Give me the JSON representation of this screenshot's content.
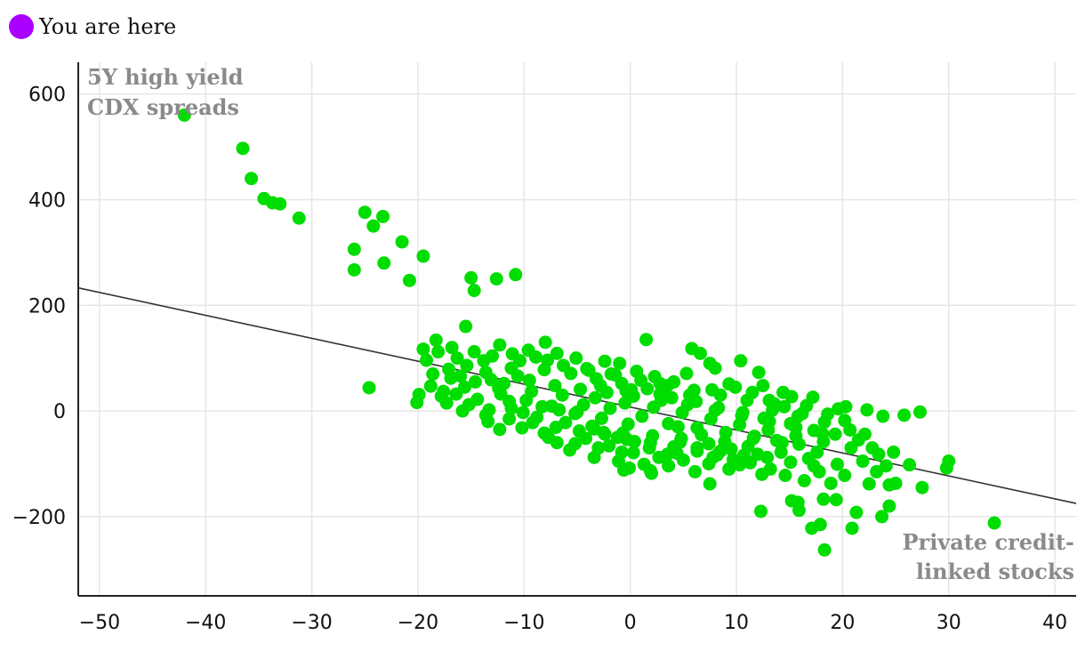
{
  "legend": {
    "label": "You are here",
    "color": "#aa00ff"
  },
  "colors": {
    "points": "#00dd00",
    "trend": "#333333",
    "grid": "#e6e6e6",
    "axis": "#222222",
    "label": "#8a8a8a"
  },
  "chart_data": {
    "type": "scatter",
    "annotations": {
      "y_corner": [
        "5Y high yield",
        "CDX spreads"
      ],
      "x_corner": [
        "Private credit-",
        "linked stocks"
      ]
    },
    "xlim": [
      -52,
      42
    ],
    "ylim": [
      -350,
      660
    ],
    "x_ticks": [
      -50,
      -40,
      -30,
      -20,
      -10,
      0,
      10,
      20,
      30,
      40
    ],
    "x_tick_labels": [
      "−50",
      "−40",
      "−30",
      "−20",
      "−10",
      "0",
      "10",
      "20",
      "30",
      "40"
    ],
    "y_ticks": [
      -200,
      0,
      200,
      400,
      600
    ],
    "y_tick_labels": [
      "−200",
      "0",
      "200",
      "400",
      "600"
    ],
    "grid": true,
    "trend_line": {
      "x": [
        -52,
        42
      ],
      "y": [
        233,
        -175
      ]
    },
    "highlight_point": {
      "x": -42,
      "y": 560
    },
    "points": [
      [
        -42,
        560
      ],
      [
        -36.5,
        497
      ],
      [
        -35.7,
        440
      ],
      [
        -34.5,
        402
      ],
      [
        -33.7,
        394
      ],
      [
        -33,
        392
      ],
      [
        -31.2,
        365
      ],
      [
        -25,
        376
      ],
      [
        -24.2,
        350
      ],
      [
        -23.3,
        368
      ],
      [
        -26,
        306
      ],
      [
        -26,
        267
      ],
      [
        -23.2,
        280
      ],
      [
        -21.5,
        320
      ],
      [
        -20.8,
        247
      ],
      [
        -19.5,
        293
      ],
      [
        -15,
        252
      ],
      [
        -14.7,
        228
      ],
      [
        -12.6,
        250
      ],
      [
        -10.8,
        258
      ],
      [
        -24.6,
        44
      ],
      [
        -15.5,
        160
      ],
      [
        -13,
        104
      ],
      [
        -12.3,
        125
      ],
      [
        -9.6,
        115
      ],
      [
        -8,
        130
      ],
      [
        1.5,
        135
      ],
      [
        5.8,
        118
      ],
      [
        6.6,
        109
      ],
      [
        7.5,
        90
      ],
      [
        8,
        81
      ],
      [
        10.4,
        95
      ],
      [
        12.1,
        73
      ],
      [
        11.5,
        35
      ],
      [
        13.6,
        13
      ],
      [
        17.2,
        26
      ],
      [
        -19.5,
        117
      ],
      [
        -18.3,
        134
      ],
      [
        -19.9,
        31
      ],
      [
        -20.1,
        16
      ],
      [
        -17.3,
        15
      ],
      [
        -13.4,
        -20
      ],
      [
        -12.3,
        -35
      ],
      [
        -10.2,
        -32
      ],
      [
        -8.1,
        -42
      ],
      [
        -6.9,
        -60
      ],
      [
        -0.6,
        -112
      ],
      [
        -0.1,
        -108
      ],
      [
        1.9,
        -113
      ],
      [
        2,
        -118
      ],
      [
        4.4,
        -80
      ],
      [
        6.1,
        -115
      ],
      [
        7.5,
        -138
      ],
      [
        9.3,
        -110
      ],
      [
        10.3,
        -102
      ],
      [
        12.4,
        -120
      ],
      [
        12.3,
        -190
      ],
      [
        15.2,
        -170
      ],
      [
        15.8,
        -173
      ],
      [
        15.9,
        -188
      ],
      [
        17.1,
        -222
      ],
      [
        17.9,
        -215
      ],
      [
        18.3,
        -263
      ],
      [
        18.2,
        -167
      ],
      [
        19.4,
        -168
      ],
      [
        20.2,
        -122
      ],
      [
        18.9,
        -137
      ],
      [
        20.9,
        -222
      ],
      [
        21.3,
        -192
      ],
      [
        22.5,
        -138
      ],
      [
        23.7,
        -200
      ],
      [
        24.4,
        -180
      ],
      [
        24.4,
        -140
      ],
      [
        25,
        -137
      ],
      [
        24.1,
        -104
      ],
      [
        19.6,
        4
      ],
      [
        20.3,
        8
      ],
      [
        22.3,
        2
      ],
      [
        23.8,
        -10
      ],
      [
        25.8,
        -8
      ],
      [
        27.3,
        -2
      ],
      [
        26.3,
        -102
      ],
      [
        27.5,
        -145
      ],
      [
        29.8,
        -108
      ],
      [
        30,
        -95
      ],
      [
        34.3,
        -212
      ],
      [
        21.5,
        -55
      ],
      [
        22.8,
        -70
      ],
      [
        23.4,
        -82
      ],
      [
        22.1,
        -44
      ],
      [
        24.8,
        -78
      ],
      [
        14.5,
        8
      ],
      [
        15.2,
        27
      ],
      [
        16.2,
        -5
      ],
      [
        13.1,
        20
      ],
      [
        9.3,
        51
      ],
      [
        5.3,
        71
      ],
      [
        2.8,
        52
      ],
      [
        -2.4,
        94
      ],
      [
        -1.8,
        70
      ],
      [
        -4.1,
        80
      ],
      [
        -6.9,
        109
      ],
      [
        -5.1,
        100
      ],
      [
        -7.8,
        96
      ],
      [
        -10.4,
        95
      ],
      [
        -11.2,
        81
      ],
      [
        -13.8,
        95
      ],
      [
        -15.4,
        86
      ],
      [
        -17.1,
        79
      ],
      [
        -16.3,
        100
      ],
      [
        -14.7,
        112
      ],
      [
        -18.6,
        70
      ],
      [
        -18.8,
        47
      ],
      [
        -17.8,
        28
      ],
      [
        -16.4,
        32
      ],
      [
        -15.2,
        12
      ],
      [
        -11.4,
        18
      ],
      [
        -8.3,
        8
      ],
      [
        -5.2,
        -5
      ],
      [
        -3.6,
        -29
      ],
      [
        -2.4,
        -44
      ],
      [
        -1.2,
        -50
      ],
      [
        0.4,
        -58
      ],
      [
        1.8,
        -70
      ],
      [
        3.5,
        -82
      ],
      [
        4.7,
        -59
      ],
      [
        6.3,
        -76
      ],
      [
        8.2,
        -83
      ],
      [
        9.5,
        -72
      ],
      [
        11.3,
        -98
      ],
      [
        13.2,
        -110
      ],
      [
        14.6,
        -122
      ],
      [
        16.4,
        -132
      ],
      [
        17.8,
        -115
      ],
      [
        19.5,
        -101
      ],
      [
        11.6,
        -52
      ],
      [
        13.8,
        -56
      ],
      [
        15.9,
        -63
      ],
      [
        17.6,
        -78
      ],
      [
        19.3,
        -44
      ],
      [
        17.3,
        -37
      ],
      [
        15.1,
        -24
      ],
      [
        12.6,
        -14
      ],
      [
        10.6,
        -3
      ],
      [
        8.3,
        6
      ],
      [
        6.2,
        18
      ],
      [
        3.9,
        25
      ],
      [
        1.6,
        42
      ],
      [
        -0.8,
        52
      ],
      [
        -3.2,
        61
      ],
      [
        -5.6,
        71
      ],
      [
        -8.1,
        78
      ],
      [
        -10.6,
        66
      ],
      [
        -13.1,
        59
      ],
      [
        -15.6,
        45
      ],
      [
        -12.4,
        43
      ],
      [
        -9.3,
        37
      ],
      [
        -6.4,
        30
      ],
      [
        -3.3,
        25
      ],
      [
        -0.5,
        15
      ],
      [
        2.2,
        7
      ],
      [
        4.9,
        -3
      ],
      [
        7.6,
        -15
      ],
      [
        10.3,
        -26
      ],
      [
        13,
        -36
      ],
      [
        15.6,
        -47
      ],
      [
        18.2,
        -58
      ],
      [
        20.8,
        -70
      ],
      [
        -8.8,
        -12
      ],
      [
        -6.1,
        -22
      ],
      [
        -3.4,
        -34
      ],
      [
        -0.7,
        -42
      ],
      [
        2.1,
        -47
      ],
      [
        4.8,
        -52
      ],
      [
        7.4,
        -62
      ],
      [
        -11.2,
        5
      ],
      [
        -14.4,
        22
      ],
      [
        -16.9,
        62
      ],
      [
        -13.6,
        73
      ],
      [
        -11.9,
        52
      ],
      [
        -9.5,
        58
      ],
      [
        -7.1,
        48
      ],
      [
        -4.7,
        41
      ],
      [
        -2.2,
        35
      ],
      [
        0.3,
        28
      ],
      [
        2.9,
        20
      ],
      [
        5.4,
        12
      ],
      [
        8,
        1
      ],
      [
        10.5,
        -9
      ],
      [
        13.1,
        -20
      ],
      [
        15.6,
        -31
      ],
      [
        18.1,
        -43
      ],
      [
        -1.9,
        5
      ],
      [
        1.1,
        -10
      ],
      [
        3.6,
        -24
      ],
      [
        6.3,
        -32
      ],
      [
        9,
        -41
      ],
      [
        11.7,
        -48
      ],
      [
        14.3,
        -60
      ],
      [
        16.8,
        -90
      ],
      [
        12,
        -82
      ],
      [
        9.7,
        -92
      ],
      [
        7.4,
        -100
      ],
      [
        5,
        -93
      ],
      [
        2.7,
        -88
      ],
      [
        0.3,
        -79
      ],
      [
        -2,
        -66
      ],
      [
        -4.2,
        -52
      ],
      [
        -5.7,
        -74
      ],
      [
        -3.4,
        -88
      ],
      [
        -1.1,
        -95
      ],
      [
        1.3,
        -101
      ],
      [
        3.6,
        -104
      ],
      [
        4.5,
        -30
      ],
      [
        6.7,
        -45
      ],
      [
        8.9,
        -58
      ],
      [
        11.1,
        -67
      ],
      [
        -0.2,
        -25
      ],
      [
        -2.7,
        -14
      ],
      [
        -5,
        -2
      ],
      [
        -7.4,
        9
      ],
      [
        -9.8,
        20
      ],
      [
        -12.2,
        32
      ],
      [
        -14.6,
        55
      ],
      [
        -16,
        66
      ],
      [
        -17.6,
        37
      ],
      [
        -15.8,
        0
      ],
      [
        -13.6,
        -8
      ],
      [
        -11.4,
        -15
      ],
      [
        -9.2,
        -22
      ],
      [
        -7,
        -31
      ],
      [
        -4.8,
        -38
      ],
      [
        -2.5,
        -41
      ],
      [
        -0.3,
        -54
      ],
      [
        1.9,
        -60
      ],
      [
        4.1,
        -68
      ],
      [
        6.3,
        -70
      ],
      [
        8.5,
        -76
      ],
      [
        10.7,
        -84
      ],
      [
        12.9,
        -88
      ],
      [
        15.1,
        -97
      ],
      [
        17.3,
        -104
      ],
      [
        -6.3,
        86
      ],
      [
        -3.9,
        77
      ],
      [
        -1.4,
        68
      ],
      [
        1,
        58
      ],
      [
        3.5,
        48
      ],
      [
        6,
        39
      ],
      [
        8.5,
        30
      ],
      [
        11,
        20
      ],
      [
        13.4,
        2
      ],
      [
        15.8,
        -10
      ],
      [
        18.3,
        -21
      ],
      [
        20.7,
        -36
      ],
      [
        -19.2,
        96
      ],
      [
        -18.1,
        112
      ],
      [
        -16.8,
        120
      ],
      [
        -1,
        90
      ],
      [
        0.6,
        75
      ],
      [
        2.3,
        65
      ],
      [
        4.1,
        55
      ],
      [
        -8.9,
        102
      ],
      [
        -11.1,
        108
      ],
      [
        12.5,
        48
      ],
      [
        9.9,
        45
      ],
      [
        7.7,
        40
      ],
      [
        5.6,
        30
      ],
      [
        3.2,
        35
      ],
      [
        -0.4,
        38
      ],
      [
        -4.4,
        12
      ],
      [
        -6.7,
        2
      ],
      [
        -10.1,
        -3
      ],
      [
        -13.3,
        2
      ],
      [
        -7.7,
        -50
      ],
      [
        -5.2,
        -62
      ],
      [
        -3,
        -70
      ],
      [
        -0.8,
        -78
      ],
      [
        7.8,
        -88
      ],
      [
        14.2,
        -78
      ],
      [
        21.9,
        -95
      ],
      [
        23.2,
        -115
      ],
      [
        -2.8,
        48
      ],
      [
        0.1,
        40
      ],
      [
        2.8,
        32
      ],
      [
        14.4,
        35
      ],
      [
        16.6,
        10
      ],
      [
        18.6,
        -6
      ],
      [
        20.2,
        -18
      ]
    ]
  }
}
